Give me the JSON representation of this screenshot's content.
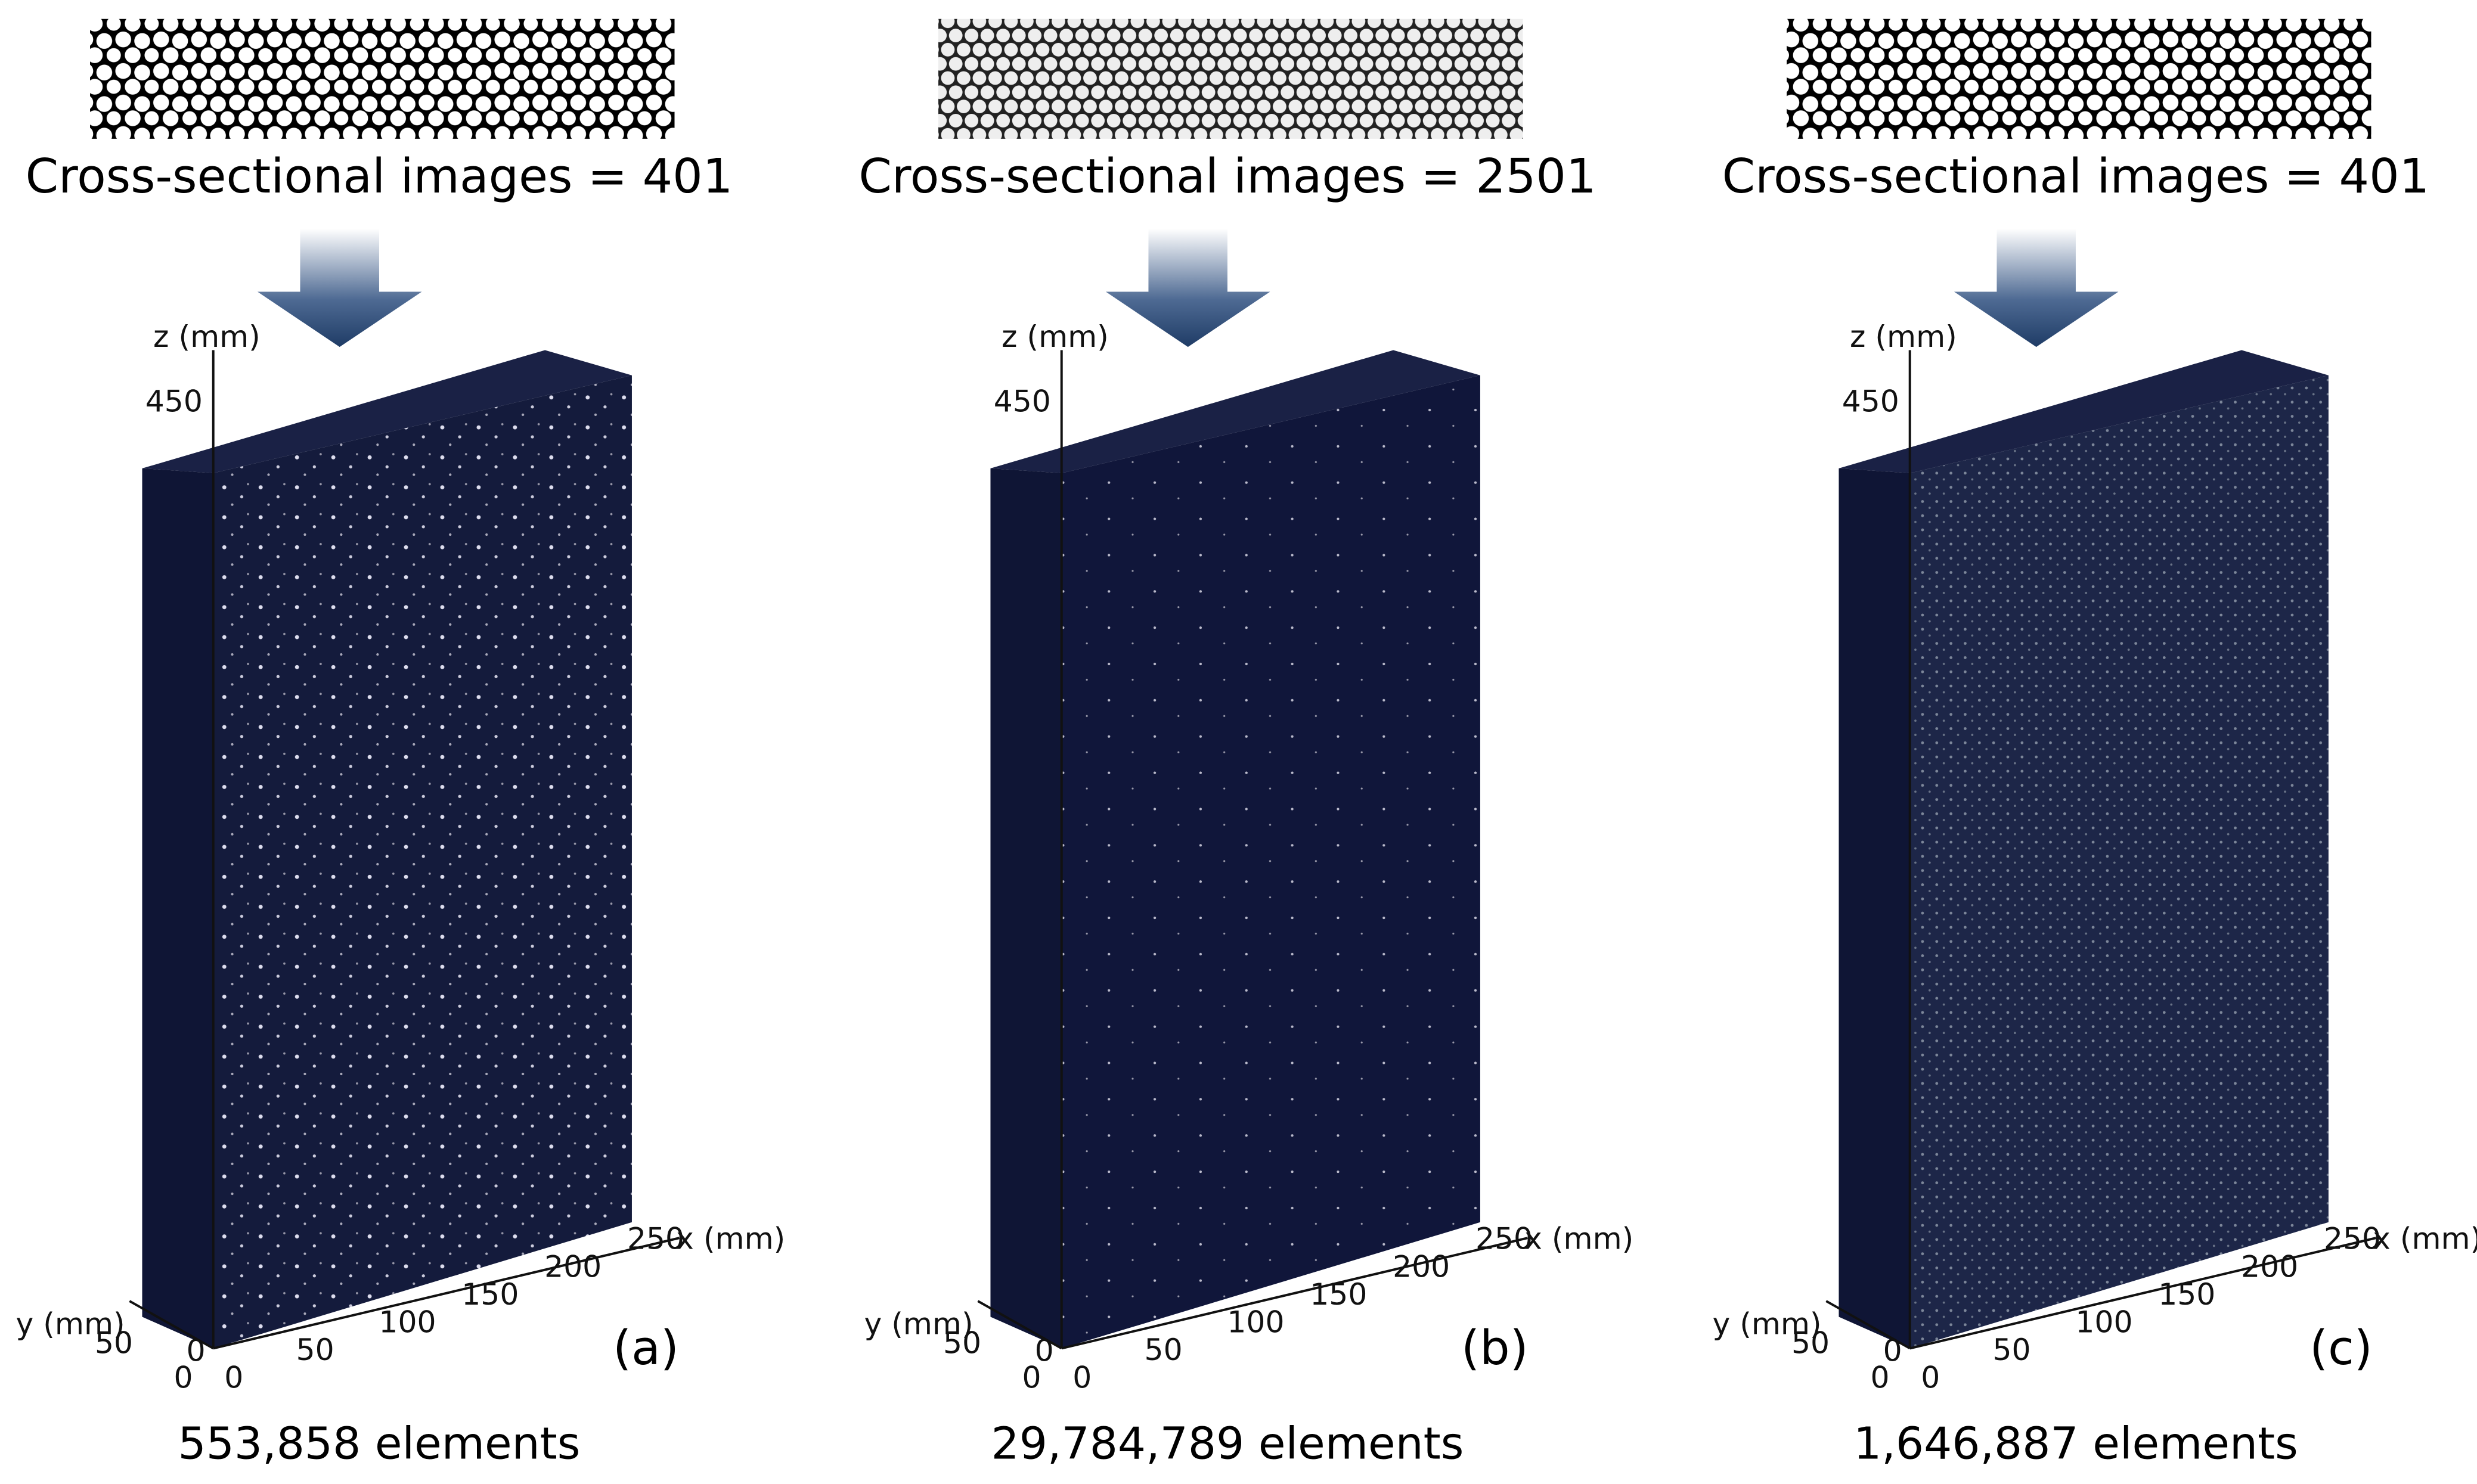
{
  "panels": [
    {
      "caption": "Cross-sectional images = 401",
      "label": "(a)",
      "elements": "553,858 elements",
      "axes": {
        "z_label": "z (mm)",
        "x_label": "x (mm)",
        "y_label": "y (mm)",
        "z_ticks": [
          "0",
          "450"
        ],
        "x_ticks": [
          "0",
          "50",
          "100",
          "150",
          "200",
          "250"
        ],
        "y_ticks": [
          "0",
          "50"
        ]
      }
    },
    {
      "caption": "Cross-sectional images = 2501",
      "label": "(b)",
      "elements": "29,784,789 elements",
      "axes": {
        "z_label": "z (mm)",
        "x_label": "x (mm)",
        "y_label": "y (mm)",
        "z_ticks": [
          "0",
          "450"
        ],
        "x_ticks": [
          "0",
          "50",
          "100",
          "150",
          "200",
          "250"
        ],
        "y_ticks": [
          "0",
          "50"
        ]
      }
    },
    {
      "caption": "Cross-sectional images = 401",
      "label": "(c)",
      "elements": "1,646,887 elements",
      "axes": {
        "z_label": "z (mm)",
        "x_label": "x (mm)",
        "y_label": "y (mm)",
        "z_ticks": [
          "0",
          "450"
        ],
        "x_ticks": [
          "0",
          "50",
          "100",
          "150",
          "200",
          "250"
        ],
        "y_ticks": [
          "0",
          "50"
        ]
      }
    }
  ]
}
